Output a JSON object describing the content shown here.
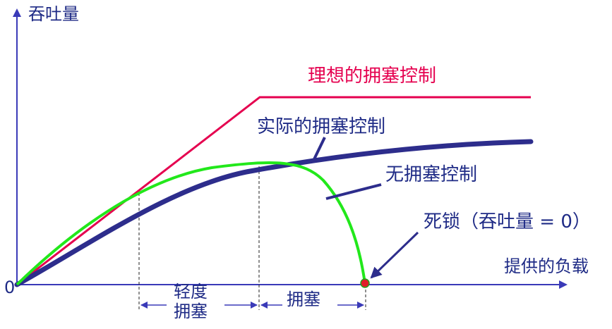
{
  "axes": {
    "y_label": "吞吐量",
    "x_label": "提供的负载",
    "origin_label": "0"
  },
  "curves": {
    "ideal_label": "理想的拥塞控制",
    "actual_label": "实际的拥塞控制",
    "no_control_label": "无拥塞控制"
  },
  "deadlock_label": "死锁（吞吐量 = 0）",
  "regions": {
    "light_congestion": "轻度\n拥塞",
    "congestion": "拥塞"
  },
  "colors": {
    "axis": "#3a3ab8",
    "ideal": "#e5004f",
    "actual": "#2d2d8c",
    "no_control": "#22e81b",
    "text": "#1f2b86",
    "deadlock_dot": "#e11d2a"
  }
}
